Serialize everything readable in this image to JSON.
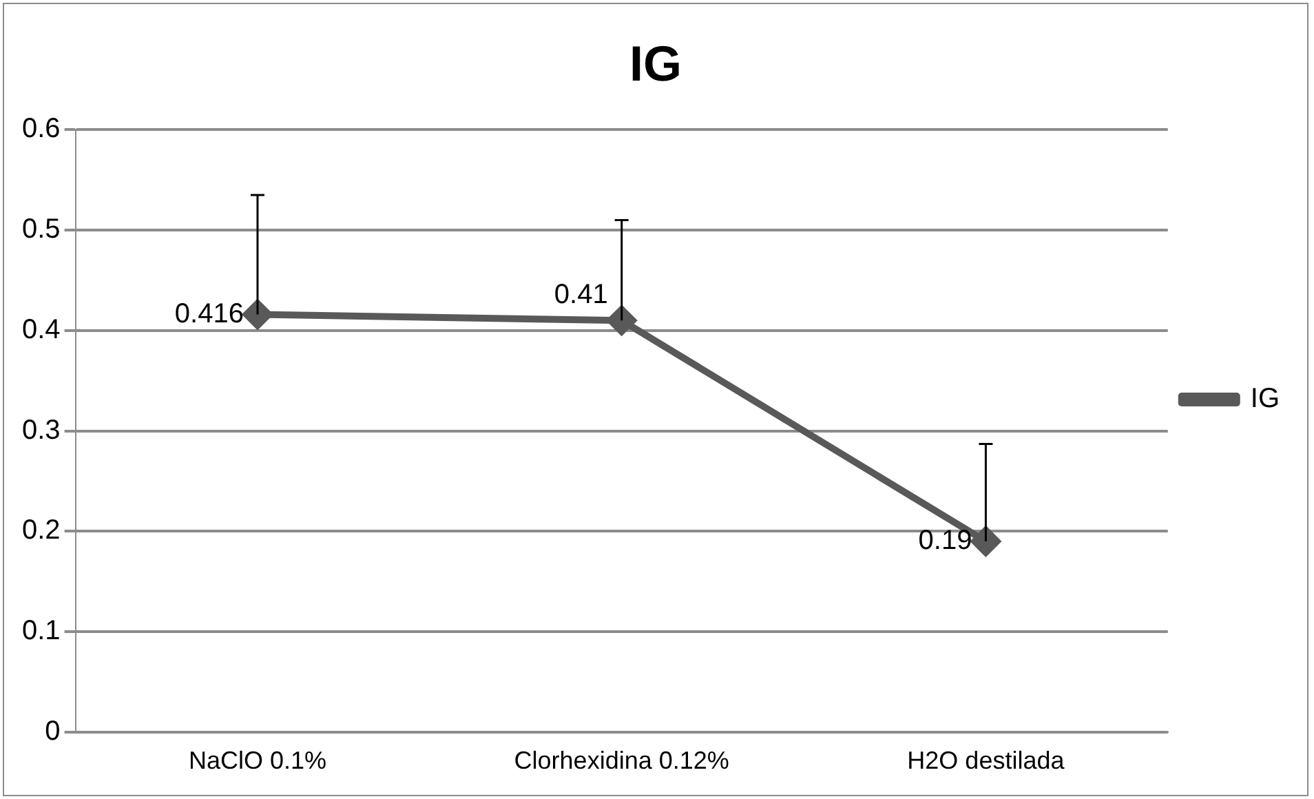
{
  "chart_data": {
    "type": "line",
    "title": "IG",
    "categories": [
      "NaClO 0.1%",
      "Clorhexidina 0.12%",
      "H2O destilada"
    ],
    "series": [
      {
        "name": "IG",
        "color": "#595959",
        "values": [
          0.416,
          0.41,
          0.19
        ],
        "errors": [
          [
            0.416,
            0.535
          ],
          [
            0.41,
            0.51
          ],
          [
            0.19,
            0.287
          ]
        ]
      }
    ],
    "ylim": [
      0,
      0.6
    ],
    "yticks": [
      0,
      0.1,
      0.2,
      0.3,
      0.4,
      0.5,
      0.6
    ],
    "grid": "y",
    "legend": "right",
    "marker": "diamond",
    "line_style": "solid",
    "data_labels": true
  }
}
